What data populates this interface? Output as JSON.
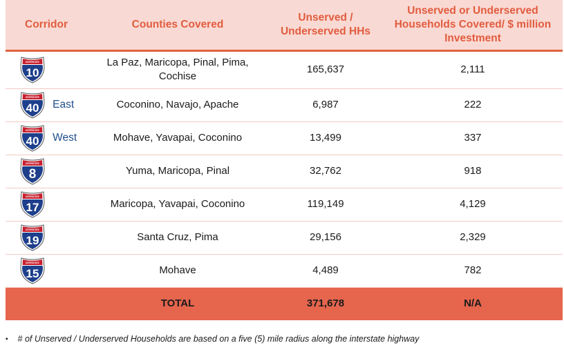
{
  "table": {
    "headers": [
      "Corridor",
      "Counties Covered",
      "Unserved / Underserved HHs",
      "Unserved or Underserved Households Covered/ $ million Investment"
    ],
    "rows": [
      {
        "shield_number": "10",
        "shield_top_label": "INTERSTATE",
        "shield_style": "plain",
        "direction": "",
        "counties": "La Paz, Maricopa, Pinal, Pima, Cochise",
        "hhs": "165,637",
        "per_million": "2,111"
      },
      {
        "shield_number": "40",
        "shield_top_label": "INTERSTATE",
        "shield_style": "state",
        "direction": "East",
        "counties": "Coconino, Navajo,  Apache",
        "hhs": "6,987",
        "per_million": "222"
      },
      {
        "shield_number": "40",
        "shield_top_label": "INTERSTATE",
        "shield_style": "state",
        "direction": "West",
        "counties": "Mohave,  Yavapai,  Coconino",
        "hhs": "13,499",
        "per_million": "337"
      },
      {
        "shield_number": "8",
        "shield_top_label": "INTERSTATE",
        "shield_style": "plain",
        "direction": "",
        "counties": "Yuma, Maricopa, Pinal",
        "hhs": "32,762",
        "per_million": "918"
      },
      {
        "shield_number": "17",
        "shield_top_label": "INTERSTATE",
        "shield_style": "state",
        "direction": "",
        "counties": "Maricopa, Yavapai,  Coconino",
        "hhs": "119,149",
        "per_million": "4,129"
      },
      {
        "shield_number": "19",
        "shield_top_label": "INTERSTATE",
        "shield_style": "state",
        "direction": "",
        "counties": "Santa Cruz, Pima",
        "hhs": "29,156",
        "per_million": "2,329"
      },
      {
        "shield_number": "15",
        "shield_top_label": "INTERSTATE",
        "shield_style": "state",
        "direction": "",
        "counties": "Mohave",
        "hhs": "4,489",
        "per_million": "782"
      }
    ],
    "total": {
      "label": "TOTAL",
      "hhs": "371,678",
      "per_million": "N/A"
    }
  },
  "footnote": {
    "bullet": "▪",
    "text": "# of Unserved / Underserved Households are based on a five (5) mile radius along the interstate highway"
  },
  "colors": {
    "header_bg": "#f9d9d3",
    "header_text": "#e15c3f",
    "total_bg": "#e5654d",
    "shield_blue": "#1d3f8c",
    "shield_red": "#c8202f"
  }
}
